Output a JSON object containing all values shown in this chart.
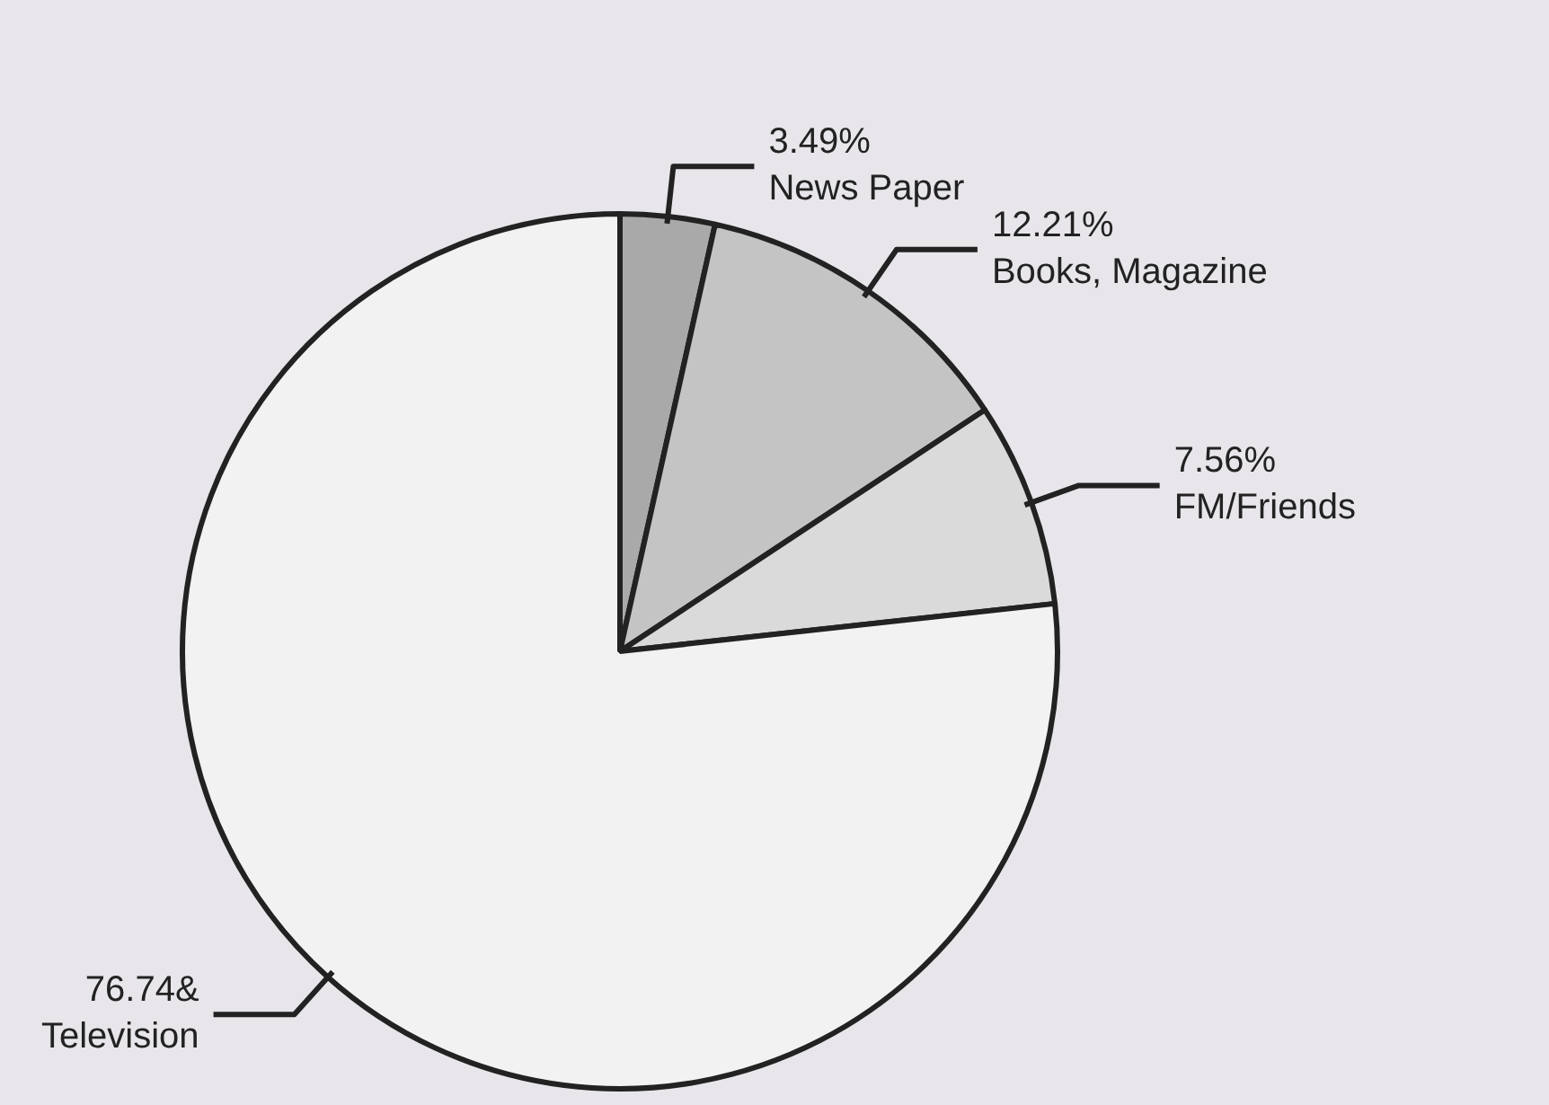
{
  "chart_data": {
    "type": "pie",
    "categories": [
      "News Paper",
      "Books, Magazine",
      "FM/Friends",
      "Television"
    ],
    "values": [
      3.49,
      12.21,
      7.56,
      76.74
    ],
    "value_labels": [
      "3.49%",
      "12.21%",
      "7.56%",
      "76.74&"
    ],
    "colors": [
      "#a9a9a9",
      "#c4c4c4",
      "#dadada",
      "#f2f2f2"
    ],
    "legend": false
  }
}
